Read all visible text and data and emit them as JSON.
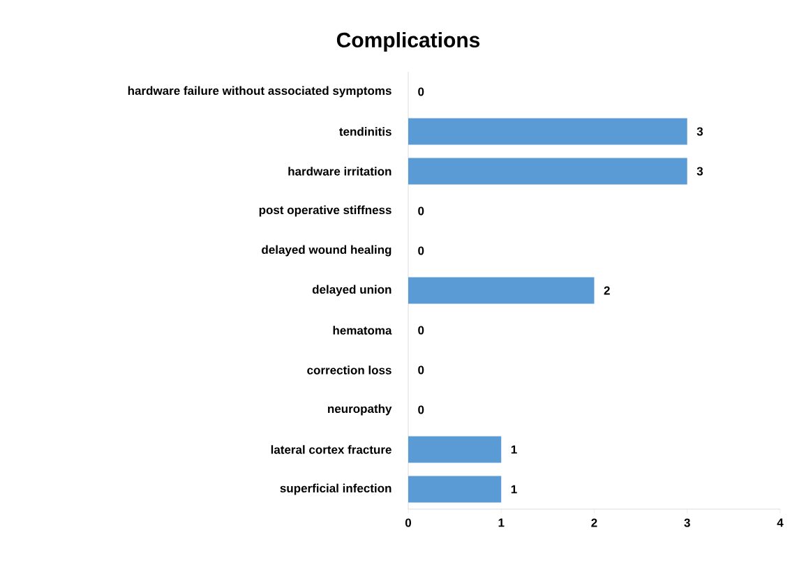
{
  "chart_data": {
    "type": "bar",
    "orientation": "horizontal",
    "title": "Complications",
    "categories": [
      "hardware failure without associated symptoms",
      "tendinitis",
      "hardware irritation",
      "post operative stiffness",
      "delayed wound healing",
      "delayed union",
      "hematoma",
      "correction loss",
      "neuropathy",
      "lateral cortex fracture",
      "superficial infection"
    ],
    "values": [
      0,
      3,
      3,
      0,
      0,
      2,
      0,
      0,
      0,
      1,
      1
    ],
    "color": "#5b9bd5",
    "xlim": [
      0,
      4
    ],
    "xticks": [
      0,
      1,
      2,
      3,
      4
    ],
    "data_labels": true,
    "grid": false
  }
}
